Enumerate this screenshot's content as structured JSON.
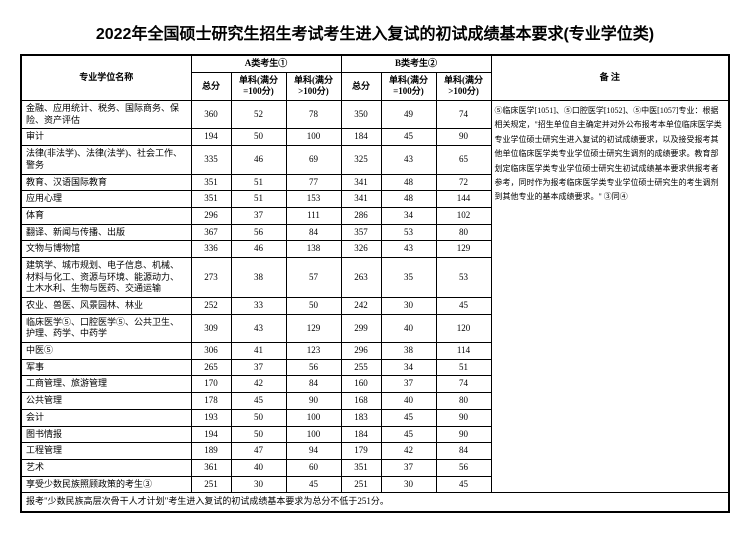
{
  "title": "2022年全国硕士研究生招生考试考生进入复试的初试成绩基本要求(专业学位类)",
  "header": {
    "major": "专业学位名称",
    "catA": "A类考生①",
    "catB": "B类考生②",
    "notes": "备  注",
    "total": "总分",
    "single100": "单科(满分=100分)",
    "singleOver100": "单科(满分>100分)"
  },
  "rows": [
    {
      "major": "金融、应用统计、税务、国际商务、保险、资产评估",
      "a": [
        360,
        52,
        78
      ],
      "b": [
        350,
        49,
        74
      ]
    },
    {
      "major": "审计",
      "a": [
        194,
        50,
        100
      ],
      "b": [
        184,
        45,
        90
      ]
    },
    {
      "major": "法律(非法学)、法律(法学)、社会工作、警务",
      "a": [
        335,
        46,
        69
      ],
      "b": [
        325,
        43,
        65
      ]
    },
    {
      "major": "教育、汉语国际教育",
      "a": [
        351,
        51,
        77
      ],
      "b": [
        341,
        48,
        72
      ]
    },
    {
      "major": "应用心理",
      "a": [
        351,
        51,
        153
      ],
      "b": [
        341,
        48,
        144
      ]
    },
    {
      "major": "体育",
      "a": [
        296,
        37,
        111
      ],
      "b": [
        286,
        34,
        102
      ]
    },
    {
      "major": "翻译、新闻与传播、出版",
      "a": [
        367,
        56,
        84
      ],
      "b": [
        357,
        53,
        80
      ]
    },
    {
      "major": "文物与博物馆",
      "a": [
        336,
        46,
        138
      ],
      "b": [
        326,
        43,
        129
      ]
    },
    {
      "major": "建筑学、城市规划、电子信息、机械、材料与化工、资源与环境、能源动力、土木水利、生物与医药、交通运输",
      "a": [
        273,
        38,
        57
      ],
      "b": [
        263,
        35,
        53
      ]
    },
    {
      "major": "农业、兽医、风景园林、林业",
      "a": [
        252,
        33,
        50
      ],
      "b": [
        242,
        30,
        45
      ]
    },
    {
      "major": "临床医学⑤、口腔医学⑤、公共卫生、护理、药学、中药学",
      "a": [
        309,
        43,
        129
      ],
      "b": [
        299,
        40,
        120
      ]
    },
    {
      "major": "中医⑤",
      "a": [
        306,
        41,
        123
      ],
      "b": [
        296,
        38,
        114
      ]
    },
    {
      "major": "军事",
      "a": [
        265,
        37,
        56
      ],
      "b": [
        255,
        34,
        51
      ]
    },
    {
      "major": "工商管理、旅游管理",
      "a": [
        170,
        42,
        84
      ],
      "b": [
        160,
        37,
        74
      ]
    },
    {
      "major": "公共管理",
      "a": [
        178,
        45,
        90
      ],
      "b": [
        168,
        40,
        80
      ]
    },
    {
      "major": "会计",
      "a": [
        193,
        50,
        100
      ],
      "b": [
        183,
        45,
        90
      ]
    },
    {
      "major": "图书情报",
      "a": [
        194,
        50,
        100
      ],
      "b": [
        184,
        45,
        90
      ]
    },
    {
      "major": "工程管理",
      "a": [
        189,
        47,
        94
      ],
      "b": [
        179,
        42,
        84
      ]
    },
    {
      "major": "艺术",
      "a": [
        361,
        40,
        60
      ],
      "b": [
        351,
        37,
        56
      ]
    },
    {
      "major": "享受少数民族照顾政策的考生③",
      "a": [
        251,
        30,
        45
      ],
      "b": [
        251,
        30,
        45
      ]
    }
  ],
  "notesText": "⑤临床医学[1051]、⑤口腔医学[1052]、⑤中医[1057]专业：根据相关规定，\"招生单位自主确定并对外公布报考本单位临床医学类专业学位硕士研究生进入复试的初试成绩要求，以及接受报考其他单位临床医学类专业学位硕士研究生调剂的成绩要求。教育部划定临床医学类专业学位硕士研究生初试成绩基本要求供报考者参考，同时作为报考临床医学类专业学位硕士研究生的考生调剂到其他专业的基本成绩要求。\"\n③同④",
  "bottomNote": "报考\"少数民族高层次骨干人才计划\"考生进入复试的初试成绩基本要求为总分不低于251分。"
}
